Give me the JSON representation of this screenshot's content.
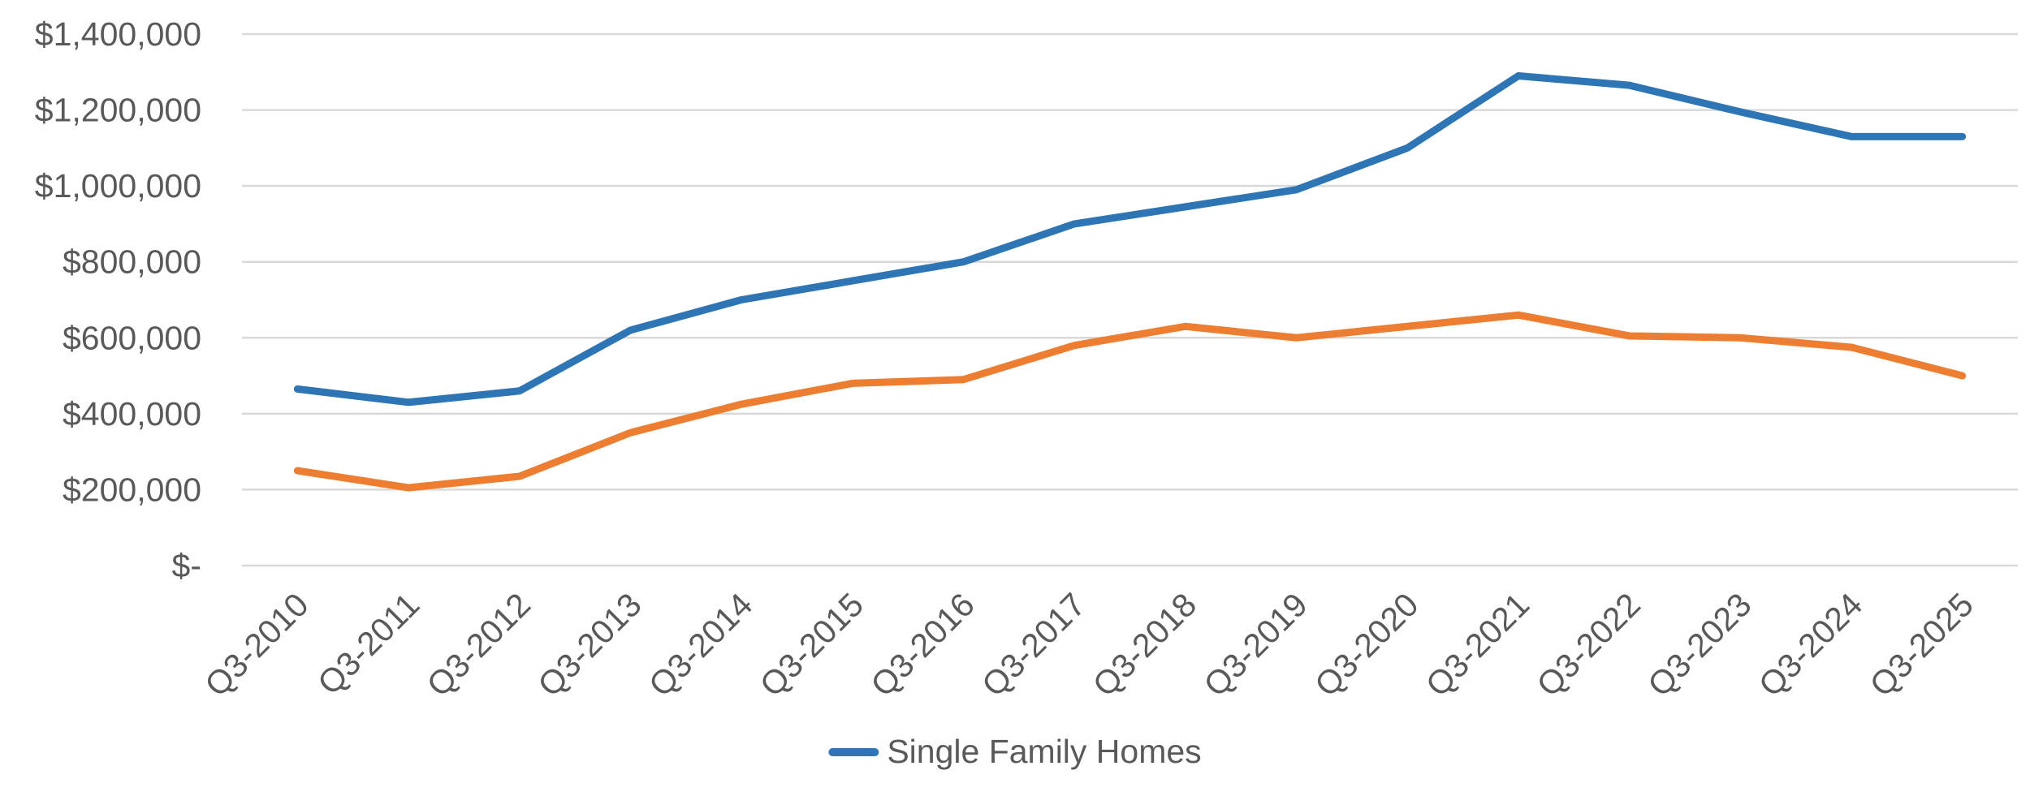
{
  "chart_data": {
    "type": "line",
    "title": "",
    "categories": [
      "Q3-2010",
      "Q3-2011",
      "Q3-2012",
      "Q3-2013",
      "Q3-2014",
      "Q3-2015",
      "Q3-2016",
      "Q3-2017",
      "Q3-2018",
      "Q3-2019",
      "Q3-2020",
      "Q3-2021",
      "Q3-2022",
      "Q3-2023",
      "Q3-2024",
      "Q3-2025"
    ],
    "series": [
      {
        "name": "Single Family Homes",
        "color": "#2E75B6",
        "in_legend": true,
        "values": [
          465000,
          430000,
          460000,
          620000,
          700000,
          750000,
          800000,
          900000,
          945000,
          990000,
          1100000,
          1290000,
          1265000,
          1195000,
          1130000,
          1130000
        ]
      },
      {
        "name": "",
        "color": "#ED7D31",
        "in_legend": false,
        "values": [
          250000,
          205000,
          235000,
          350000,
          425000,
          480000,
          490000,
          580000,
          630000,
          600000,
          630000,
          660000,
          605000,
          600000,
          575000,
          500000
        ]
      }
    ],
    "ylim": [
      0,
      1400000
    ],
    "y_tick_interval": 200000,
    "y_tick_labels": [
      "$-",
      "$200,000",
      "$400,000",
      "$600,000",
      "$800,000",
      "$1,000,000",
      "$1,200,000",
      "$1,400,000"
    ],
    "x_tick_rotation": 45,
    "grid": true,
    "legend_position": "bottom"
  },
  "colors": {
    "background": "#FFFFFF",
    "axis_text": "#595959",
    "gridline": "#D9D9D9",
    "series_blue": "#2E75B6",
    "series_orange": "#ED7D31"
  }
}
